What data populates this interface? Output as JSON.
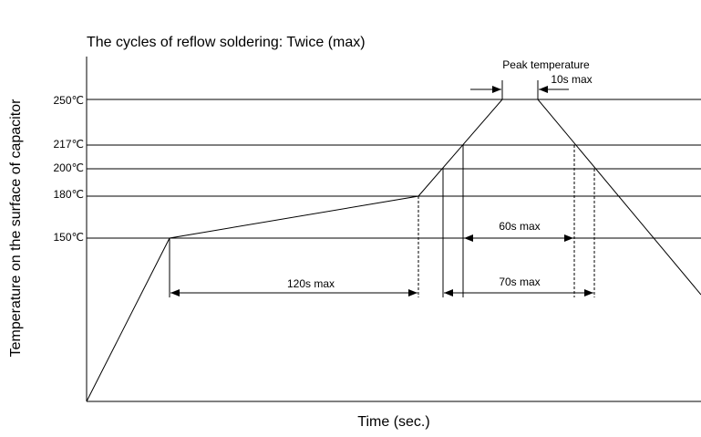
{
  "title": "The cycles of reflow soldering: Twice (max)",
  "y_axis_label": "Temperature on the surface of capacitor",
  "x_axis_label": "Time (sec.)",
  "temperature_levels": [
    "250℃",
    "217℃",
    "200℃",
    "180℃",
    "150℃"
  ],
  "annotations": {
    "peak": "Peak temperature",
    "peak_time": "10s max",
    "preheat": "120s max",
    "above_217": "60s max",
    "above_200": "70s max"
  }
}
